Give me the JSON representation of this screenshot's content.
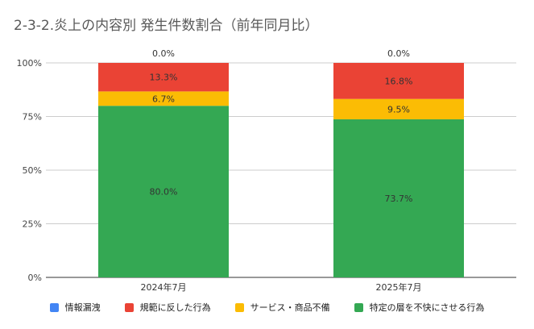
{
  "chart_data": {
    "type": "bar",
    "stacked": true,
    "normalized": true,
    "title": "2-3-2.炎上の内容別 発生件数割合（前年同月比）",
    "categories": [
      "2024年7月",
      "2025年7月"
    ],
    "series": [
      {
        "name": "特定の層を不快にさせる行為",
        "color": "#34a853",
        "values": [
          80.0,
          73.7
        ],
        "labels": [
          "80.0%",
          "73.7%"
        ]
      },
      {
        "name": "サービス・商品不備",
        "color": "#fbbc04",
        "values": [
          6.7,
          9.5
        ],
        "labels": [
          "6.7%",
          "9.5%"
        ]
      },
      {
        "name": "規範に反した行為",
        "color": "#ea4335",
        "values": [
          13.3,
          16.8
        ],
        "labels": [
          "13.3%",
          "16.8%"
        ]
      },
      {
        "name": "情報漏洩",
        "color": "#4285f4",
        "values": [
          0.0,
          0.0
        ],
        "labels": [
          "0.0%",
          "0.0%"
        ]
      }
    ],
    "legend_order": [
      "情報漏洩",
      "規範に反した行為",
      "サービス・商品不備",
      "特定の層を不快にさせる行為"
    ],
    "y_ticks": [
      0,
      25,
      50,
      75,
      100
    ],
    "y_tick_labels": [
      "0%",
      "25%",
      "50%",
      "75%",
      "100%"
    ],
    "ylim": [
      0,
      100
    ],
    "grid": true,
    "legend_position": "bottom"
  }
}
